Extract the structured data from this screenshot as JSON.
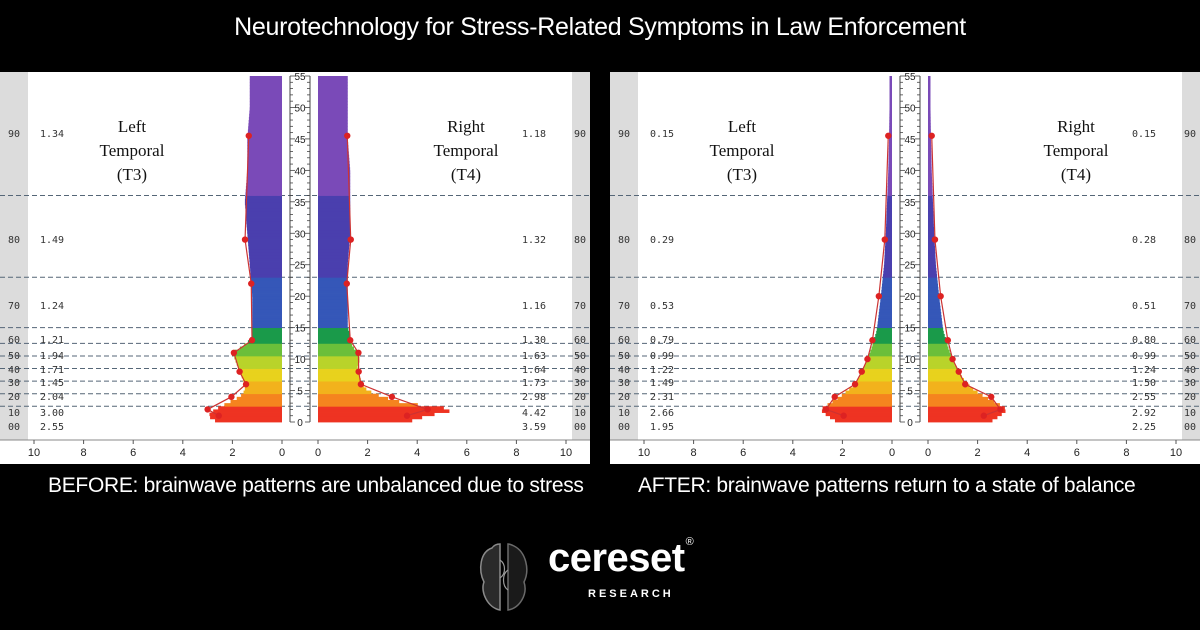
{
  "header": {
    "title": "Neurotechnology for Stress-Related Symptoms in Law Enforcement"
  },
  "captions": {
    "before": "BEFORE: brainwave patterns are unbalanced due to stress",
    "after": "AFTER:  brainwave patterns return to a state of balance"
  },
  "logo": {
    "name": "cereset",
    "trademark": "®",
    "sub": "RESEARCH",
    "icon": "brain-icon"
  },
  "colors": {
    "background": "#000000",
    "dot": "#dd2222",
    "line": "#cc3333",
    "bar_edge": "#5b2c8a"
  },
  "chart_data": [
    {
      "type": "bar",
      "panel": "before",
      "y_ticks": [
        0,
        5,
        10,
        15,
        20,
        25,
        30,
        35,
        40,
        45,
        50,
        55
      ],
      "ylim": [
        0,
        55
      ],
      "x_ticks_left": [
        "10",
        "8",
        "6",
        "4",
        "2",
        "0"
      ],
      "x_ticks_right": [
        "0",
        "2",
        "4",
        "6",
        "8",
        "10"
      ],
      "xlim": [
        0,
        10
      ],
      "left_label": [
        "Left",
        "Temporal",
        "(T3)"
      ],
      "right_label": [
        "Right",
        "Temporal",
        "(T4)"
      ],
      "bands": [
        {
          "percentile": "90",
          "left_value": "1.34",
          "right_value": "1.18"
        },
        {
          "percentile": "80",
          "left_value": "1.49",
          "right_value": "1.32"
        },
        {
          "percentile": "70",
          "left_value": "1.24",
          "right_value": "1.16"
        },
        {
          "percentile": "60",
          "left_value": "1.21",
          "right_value": "1.30"
        },
        {
          "percentile": "50",
          "left_value": "1.94",
          "right_value": "1.63"
        },
        {
          "percentile": "40",
          "left_value": "1.71",
          "right_value": "1.64"
        },
        {
          "percentile": "30",
          "left_value": "1.45",
          "right_value": "1.73"
        },
        {
          "percentile": "20",
          "left_value": "2.04",
          "right_value": "2.98"
        },
        {
          "percentile": "10",
          "left_value": "3.00",
          "right_value": "4.42"
        },
        {
          "percentile": "00",
          "left_value": "2.55",
          "right_value": "3.59"
        }
      ],
      "band_boundaries": [
        0.5,
        2.5,
        4.5,
        6.5,
        8.5,
        10.5,
        12.5,
        15,
        23,
        36,
        55
      ],
      "left_profile": [
        {
          "y": 0,
          "x": 2.6
        },
        {
          "y": 1,
          "x": 3.0
        },
        {
          "y": 2,
          "x": 2.7
        },
        {
          "y": 3,
          "x": 2.2
        },
        {
          "y": 4,
          "x": 1.7
        },
        {
          "y": 5,
          "x": 1.5
        },
        {
          "y": 6,
          "x": 1.5
        },
        {
          "y": 7,
          "x": 1.6
        },
        {
          "y": 8,
          "x": 1.7
        },
        {
          "y": 9,
          "x": 1.8
        },
        {
          "y": 10,
          "x": 1.9
        },
        {
          "y": 11,
          "x": 2.0
        },
        {
          "y": 12,
          "x": 1.6
        },
        {
          "y": 13,
          "x": 1.3
        },
        {
          "y": 14,
          "x": 1.2
        },
        {
          "y": 15,
          "x": 1.2
        },
        {
          "y": 20,
          "x": 1.2
        },
        {
          "y": 25,
          "x": 1.3
        },
        {
          "y": 30,
          "x": 1.4
        },
        {
          "y": 35,
          "x": 1.5
        },
        {
          "y": 40,
          "x": 1.4
        },
        {
          "y": 45,
          "x": 1.4
        },
        {
          "y": 50,
          "x": 1.3
        },
        {
          "y": 55,
          "x": 1.3
        }
      ],
      "right_profile": [
        {
          "y": 0,
          "x": 3.6
        },
        {
          "y": 1,
          "x": 4.4
        },
        {
          "y": 2,
          "x": 5.6
        },
        {
          "y": 3,
          "x": 3.5
        },
        {
          "y": 4,
          "x": 2.6
        },
        {
          "y": 5,
          "x": 2.0
        },
        {
          "y": 6,
          "x": 1.8
        },
        {
          "y": 7,
          "x": 1.7
        },
        {
          "y": 8,
          "x": 1.6
        },
        {
          "y": 9,
          "x": 1.6
        },
        {
          "y": 10,
          "x": 1.7
        },
        {
          "y": 11,
          "x": 1.6
        },
        {
          "y": 12,
          "x": 1.4
        },
        {
          "y": 13,
          "x": 1.3
        },
        {
          "y": 14,
          "x": 1.3
        },
        {
          "y": 15,
          "x": 1.2
        },
        {
          "y": 20,
          "x": 1.2
        },
        {
          "y": 25,
          "x": 1.2
        },
        {
          "y": 30,
          "x": 1.3
        },
        {
          "y": 35,
          "x": 1.3
        },
        {
          "y": 40,
          "x": 1.3
        },
        {
          "y": 45,
          "x": 1.2
        },
        {
          "y": 50,
          "x": 1.2
        },
        {
          "y": 55,
          "x": 1.2
        }
      ],
      "left_points": [
        {
          "y": 1,
          "x": 2.55
        },
        {
          "y": 2,
          "x": 3.0
        },
        {
          "y": 4,
          "x": 2.04
        },
        {
          "y": 6,
          "x": 1.45
        },
        {
          "y": 8,
          "x": 1.71
        },
        {
          "y": 11,
          "x": 1.94
        },
        {
          "y": 13,
          "x": 1.21
        },
        {
          "y": 22,
          "x": 1.24
        },
        {
          "y": 29,
          "x": 1.49
        },
        {
          "y": 45.5,
          "x": 1.34
        }
      ],
      "right_points": [
        {
          "y": 1,
          "x": 3.59
        },
        {
          "y": 2,
          "x": 4.42
        },
        {
          "y": 4,
          "x": 2.98
        },
        {
          "y": 6,
          "x": 1.73
        },
        {
          "y": 8,
          "x": 1.64
        },
        {
          "y": 11,
          "x": 1.63
        },
        {
          "y": 13,
          "x": 1.3
        },
        {
          "y": 22,
          "x": 1.16
        },
        {
          "y": 29,
          "x": 1.32
        },
        {
          "y": 45.5,
          "x": 1.18
        }
      ]
    },
    {
      "type": "bar",
      "panel": "after",
      "y_ticks": [
        0,
        5,
        10,
        15,
        20,
        25,
        30,
        35,
        40,
        45,
        50,
        55
      ],
      "ylim": [
        0,
        55
      ],
      "x_ticks_left": [
        "10",
        "8",
        "6",
        "4",
        "2",
        "0"
      ],
      "x_ticks_right": [
        "0",
        "2",
        "4",
        "6",
        "8",
        "10"
      ],
      "xlim": [
        0,
        10
      ],
      "left_label": [
        "Left",
        "Temporal",
        "(T3)"
      ],
      "right_label": [
        "Right",
        "Temporal",
        "(T4)"
      ],
      "bands": [
        {
          "percentile": "90",
          "left_value": "0.15",
          "right_value": "0.15"
        },
        {
          "percentile": "80",
          "left_value": "0.29",
          "right_value": "0.28"
        },
        {
          "percentile": "70",
          "left_value": "0.53",
          "right_value": "0.51"
        },
        {
          "percentile": "60",
          "left_value": "0.79",
          "right_value": "0.80"
        },
        {
          "percentile": "50",
          "left_value": "0.99",
          "right_value": "0.99"
        },
        {
          "percentile": "40",
          "left_value": "1.22",
          "right_value": "1.24"
        },
        {
          "percentile": "30",
          "left_value": "1.49",
          "right_value": "1.50"
        },
        {
          "percentile": "20",
          "left_value": "2.31",
          "right_value": "2.55"
        },
        {
          "percentile": "10",
          "left_value": "2.66",
          "right_value": "2.92"
        },
        {
          "percentile": "00",
          "left_value": "1.95",
          "right_value": "2.25"
        }
      ],
      "band_boundaries": [
        0.5,
        2.5,
        4.5,
        6.5,
        8.5,
        10.5,
        12.5,
        15,
        23,
        36,
        55
      ],
      "left_profile": [
        {
          "y": 0,
          "x": 2.2
        },
        {
          "y": 1,
          "x": 2.6
        },
        {
          "y": 2,
          "x": 2.9
        },
        {
          "y": 3,
          "x": 2.5
        },
        {
          "y": 4,
          "x": 2.1
        },
        {
          "y": 5,
          "x": 1.8
        },
        {
          "y": 6,
          "x": 1.5
        },
        {
          "y": 7,
          "x": 1.35
        },
        {
          "y": 8,
          "x": 1.2
        },
        {
          "y": 9,
          "x": 1.1
        },
        {
          "y": 10,
          "x": 1.0
        },
        {
          "y": 11,
          "x": 0.9
        },
        {
          "y": 12,
          "x": 0.8
        },
        {
          "y": 13,
          "x": 0.75
        },
        {
          "y": 14,
          "x": 0.65
        },
        {
          "y": 15,
          "x": 0.6
        },
        {
          "y": 20,
          "x": 0.45
        },
        {
          "y": 25,
          "x": 0.32
        },
        {
          "y": 30,
          "x": 0.25
        },
        {
          "y": 35,
          "x": 0.2
        },
        {
          "y": 40,
          "x": 0.15
        },
        {
          "y": 45,
          "x": 0.12
        },
        {
          "y": 50,
          "x": 0.1
        },
        {
          "y": 55,
          "x": 0.1
        }
      ],
      "right_profile": [
        {
          "y": 0,
          "x": 2.5
        },
        {
          "y": 1,
          "x": 2.9
        },
        {
          "y": 2,
          "x": 3.2
        },
        {
          "y": 3,
          "x": 2.8
        },
        {
          "y": 4,
          "x": 2.3
        },
        {
          "y": 5,
          "x": 1.9
        },
        {
          "y": 6,
          "x": 1.6
        },
        {
          "y": 7,
          "x": 1.4
        },
        {
          "y": 8,
          "x": 1.25
        },
        {
          "y": 9,
          "x": 1.1
        },
        {
          "y": 10,
          "x": 1.0
        },
        {
          "y": 11,
          "x": 0.9
        },
        {
          "y": 12,
          "x": 0.8
        },
        {
          "y": 13,
          "x": 0.75
        },
        {
          "y": 14,
          "x": 0.65
        },
        {
          "y": 15,
          "x": 0.6
        },
        {
          "y": 20,
          "x": 0.45
        },
        {
          "y": 25,
          "x": 0.32
        },
        {
          "y": 30,
          "x": 0.25
        },
        {
          "y": 35,
          "x": 0.2
        },
        {
          "y": 40,
          "x": 0.15
        },
        {
          "y": 45,
          "x": 0.12
        },
        {
          "y": 50,
          "x": 0.1
        },
        {
          "y": 55,
          "x": 0.1
        }
      ],
      "left_points": [
        {
          "y": 1,
          "x": 1.95
        },
        {
          "y": 2,
          "x": 2.66
        },
        {
          "y": 4,
          "x": 2.31
        },
        {
          "y": 6,
          "x": 1.49
        },
        {
          "y": 8,
          "x": 1.22
        },
        {
          "y": 10,
          "x": 0.99
        },
        {
          "y": 13,
          "x": 0.79
        },
        {
          "y": 20,
          "x": 0.53
        },
        {
          "y": 29,
          "x": 0.29
        },
        {
          "y": 45.5,
          "x": 0.15
        }
      ],
      "right_points": [
        {
          "y": 1,
          "x": 2.25
        },
        {
          "y": 2,
          "x": 2.92
        },
        {
          "y": 4,
          "x": 2.55
        },
        {
          "y": 6,
          "x": 1.5
        },
        {
          "y": 8,
          "x": 1.24
        },
        {
          "y": 10,
          "x": 0.99
        },
        {
          "y": 13,
          "x": 0.8
        },
        {
          "y": 20,
          "x": 0.51
        },
        {
          "y": 29,
          "x": 0.28
        },
        {
          "y": 45.5,
          "x": 0.15
        }
      ]
    }
  ]
}
